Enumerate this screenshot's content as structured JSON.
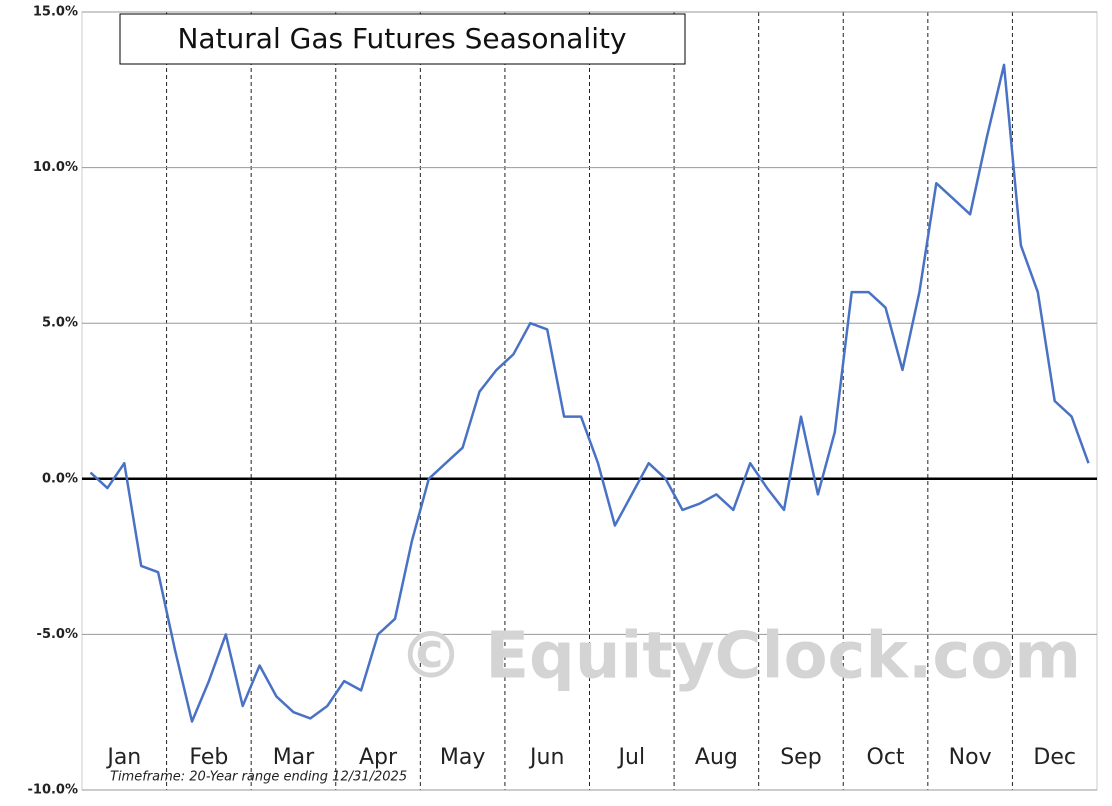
{
  "chart_data": {
    "type": "line",
    "title": "Natural Gas Futures Seasonality",
    "watermark": "© EquityClock.com",
    "footnote": "Timeframe: 20-Year range ending 12/31/2025",
    "categories": [
      null,
      null,
      "Jan",
      null,
      null,
      null,
      null,
      "Feb",
      null,
      null,
      null,
      null,
      "Mar",
      null,
      null,
      null,
      null,
      "Apr",
      null,
      null,
      null,
      null,
      "May",
      null,
      null,
      null,
      null,
      "Jun",
      null,
      null,
      null,
      null,
      "Jul",
      null,
      null,
      null,
      null,
      "Aug",
      null,
      null,
      null,
      null,
      "Sep",
      null,
      null,
      null,
      null,
      "Oct",
      null,
      null,
      null,
      null,
      "Nov",
      null,
      null,
      null,
      null,
      "Dec",
      null,
      null
    ],
    "values": [
      0.2,
      -0.3,
      0.5,
      -2.8,
      -3,
      -5.5,
      -7.8,
      -6.5,
      -5,
      -7.3,
      -6,
      -7,
      -7.5,
      -7.7,
      -7.3,
      -6.5,
      -6.8,
      -5,
      -4.5,
      -2,
      0,
      0.5,
      1,
      2.8,
      3.5,
      4,
      5,
      4.8,
      2,
      2,
      0.5,
      -1.5,
      -0.5,
      0.5,
      0,
      -1,
      -0.8,
      -0.5,
      -1,
      0.5,
      -0.3,
      -1,
      2,
      -0.5,
      1.5,
      6,
      6,
      5.5,
      3.5,
      6,
      9.5,
      9,
      8.5,
      11,
      13.3,
      7.5,
      6,
      2.5,
      2,
      0.5
    ],
    "color": "#4a72c4",
    "ylim": [
      -10,
      15
    ],
    "yticks": [
      {
        "value": -10,
        "label": "-10.0%"
      },
      {
        "value": -5,
        "label": "-5.0%"
      },
      {
        "value": 0,
        "label": "0.0%"
      },
      {
        "value": 5,
        "label": "5.0%"
      },
      {
        "value": 10,
        "label": "10.0%"
      },
      {
        "value": 15,
        "label": "15.0%"
      }
    ],
    "grid": true
  }
}
